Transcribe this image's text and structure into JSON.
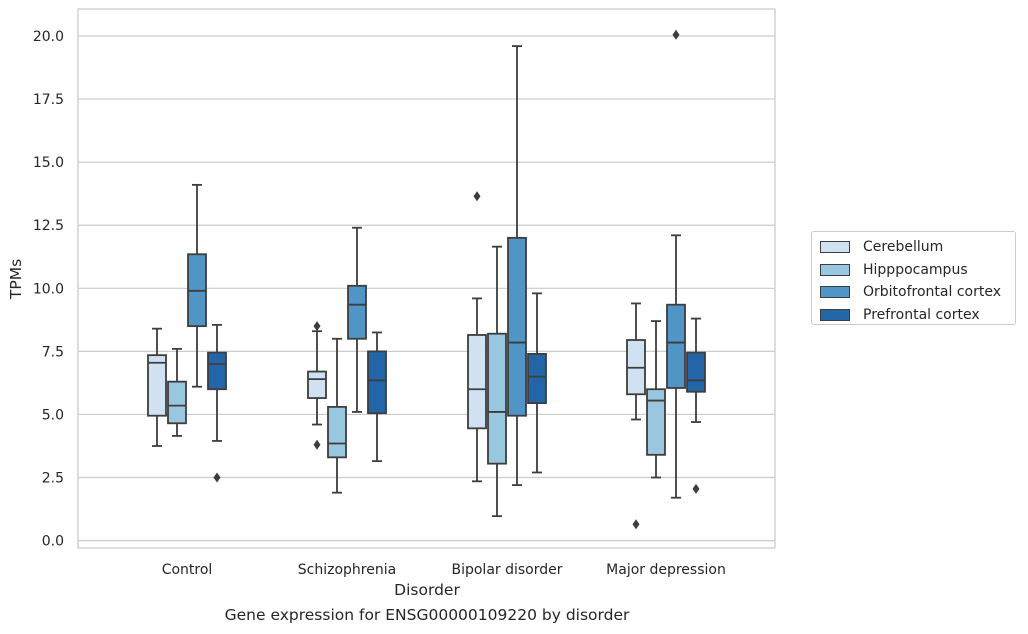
{
  "caption": "Gene expression for ENSG00000109220 by disorder",
  "chart_data": {
    "type": "box",
    "xlabel": "Disorder",
    "ylabel": "TPMs",
    "ylim": [
      -0.3,
      21.0
    ],
    "yticks": [
      "0.0",
      "2.5",
      "5.0",
      "7.5",
      "10.0",
      "12.5",
      "15.0",
      "17.5",
      "20.0"
    ],
    "grid": "horizontal",
    "legend_position": "right",
    "categories": [
      "Control",
      "Schizophrenia",
      "Bipolar disorder",
      "Major depression"
    ],
    "series": [
      {
        "name": "Cerebellum",
        "color": "#d0e1f2",
        "boxes": [
          {
            "whisker_low": 3.75,
            "q1": 4.95,
            "median": 7.05,
            "q3": 7.35,
            "whisker_high": 8.4,
            "outliers": []
          },
          {
            "whisker_low": 4.6,
            "q1": 5.65,
            "median": 6.4,
            "q3": 6.7,
            "whisker_high": 8.3,
            "outliers": [
              3.8,
              8.5
            ]
          },
          {
            "whisker_low": 2.35,
            "q1": 4.45,
            "median": 6.0,
            "q3": 8.15,
            "whisker_high": 9.6,
            "outliers": [
              13.65
            ]
          },
          {
            "whisker_low": 4.8,
            "q1": 5.8,
            "median": 6.85,
            "q3": 7.95,
            "whisker_high": 9.4,
            "outliers": [
              0.65
            ]
          }
        ]
      },
      {
        "name": "Hipppocampus",
        "color": "#9ac7e0",
        "boxes": [
          {
            "whisker_low": 4.15,
            "q1": 4.65,
            "median": 5.35,
            "q3": 6.3,
            "whisker_high": 7.6,
            "outliers": []
          },
          {
            "whisker_low": 1.9,
            "q1": 3.3,
            "median": 3.85,
            "q3": 5.3,
            "whisker_high": 8.0,
            "outliers": []
          },
          {
            "whisker_low": 0.97,
            "q1": 3.05,
            "median": 5.1,
            "q3": 8.2,
            "whisker_high": 11.65,
            "outliers": []
          },
          {
            "whisker_low": 2.5,
            "q1": 3.4,
            "median": 5.55,
            "q3": 6.0,
            "whisker_high": 8.7,
            "outliers": []
          }
        ]
      },
      {
        "name": "Orbitofrontal cortex",
        "color": "#5095c6",
        "boxes": [
          {
            "whisker_low": 6.1,
            "q1": 8.5,
            "median": 9.9,
            "q3": 11.35,
            "whisker_high": 14.1,
            "outliers": []
          },
          {
            "whisker_low": 5.1,
            "q1": 8.0,
            "median": 9.35,
            "q3": 10.1,
            "whisker_high": 12.4,
            "outliers": []
          },
          {
            "whisker_low": 2.2,
            "q1": 4.95,
            "median": 7.85,
            "q3": 12.0,
            "whisker_high": 19.6,
            "outliers": []
          },
          {
            "whisker_low": 1.7,
            "q1": 6.05,
            "median": 7.85,
            "q3": 9.35,
            "whisker_high": 12.1,
            "outliers": [
              20.05
            ]
          }
        ]
      },
      {
        "name": "Prefrontal cortex",
        "color": "#2465a8",
        "boxes": [
          {
            "whisker_low": 3.95,
            "q1": 6.0,
            "median": 7.0,
            "q3": 7.45,
            "whisker_high": 8.55,
            "outliers": [
              2.5
            ]
          },
          {
            "whisker_low": 3.15,
            "q1": 5.05,
            "median": 6.35,
            "q3": 7.5,
            "whisker_high": 8.25,
            "outliers": []
          },
          {
            "whisker_low": 2.7,
            "q1": 5.45,
            "median": 6.5,
            "q3": 7.4,
            "whisker_high": 9.8,
            "outliers": []
          },
          {
            "whisker_low": 4.7,
            "q1": 5.9,
            "median": 6.35,
            "q3": 7.45,
            "whisker_high": 8.8,
            "outliers": [
              2.05
            ]
          }
        ]
      }
    ]
  }
}
